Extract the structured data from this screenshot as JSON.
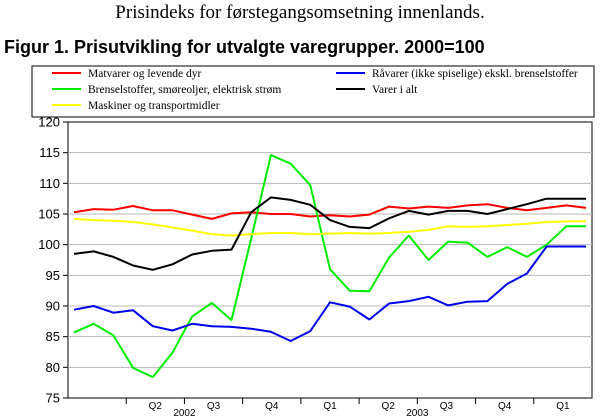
{
  "header": {
    "supertitle": "Prisindeks for førstegangsomsetning innenlands.",
    "figure_title": "Figur 1. Prisutvikling for utvalgte varegrupper. 2000=100"
  },
  "chart_data": {
    "type": "line",
    "title": "Figur 1. Prisutvikling for utvalgte varegrupper. 2000=100",
    "xlabel": "",
    "ylabel": "",
    "ylim": [
      75,
      120
    ],
    "yticks": [
      75,
      80,
      85,
      90,
      95,
      100,
      105,
      110,
      115,
      120
    ],
    "grid": true,
    "legend_position": "top",
    "x": [
      "2002-01",
      "2002-02",
      "2002-03",
      "2002-04",
      "2002-05",
      "2002-06",
      "2002-07",
      "2002-08",
      "2002-09",
      "2002-10",
      "2002-11",
      "2002-12",
      "2003-01",
      "2003-02",
      "2003-03",
      "2003-04",
      "2003-05",
      "2003-06",
      "2003-07",
      "2003-08",
      "2003-09",
      "2003-10",
      "2003-11",
      "2003-12",
      "2004-01",
      "2004-02",
      "2004-03"
    ],
    "quarter_labels": [
      "Q2",
      "Q3",
      "Q4",
      "Q1",
      "Q2",
      "Q3",
      "Q4",
      "Q1"
    ],
    "year_labels": [
      "2002",
      "2003"
    ],
    "series": [
      {
        "name": "Matvarer og levende dyr",
        "color": "#ff0000",
        "values": [
          105.3,
          105.8,
          105.7,
          106.3,
          105.6,
          105.6,
          104.9,
          104.2,
          105.1,
          105.3,
          105.0,
          105.0,
          104.6,
          104.8,
          104.6,
          104.9,
          106.2,
          105.9,
          106.2,
          106.0,
          106.4,
          106.6,
          106.0,
          105.6,
          106.0,
          106.4,
          106.0
        ]
      },
      {
        "name": "Brenselstoffer, smøreoljer, elektrisk strøm",
        "color": "#00ee00",
        "values": [
          85.7,
          87.1,
          85.2,
          79.9,
          78.4,
          82.4,
          88.3,
          90.5,
          87.7,
          101.0,
          114.6,
          113.2,
          109.7,
          96.0,
          92.5,
          92.4,
          97.9,
          101.5,
          97.5,
          100.5,
          100.3,
          98.0,
          99.6,
          98.0,
          100.0,
          103.0,
          103.0
        ]
      },
      {
        "name": "Maskiner og transportmidler",
        "color": "#ffff00",
        "values": [
          104.2,
          104.0,
          103.9,
          103.7,
          103.3,
          102.8,
          102.3,
          101.7,
          101.5,
          101.7,
          101.9,
          101.9,
          101.7,
          101.8,
          101.9,
          101.8,
          101.9,
          102.1,
          102.4,
          103.0,
          102.9,
          103.0,
          103.2,
          103.4,
          103.7,
          103.8,
          103.8
        ]
      },
      {
        "name": "Råvarer (ikke spiselige) ekskl. brenselstoffer",
        "color": "#0000ee",
        "values": [
          89.4,
          90.0,
          88.9,
          89.3,
          86.7,
          86.0,
          87.1,
          86.7,
          86.6,
          86.3,
          85.8,
          84.3,
          85.9,
          90.6,
          89.9,
          87.8,
          90.4,
          90.8,
          91.5,
          90.1,
          90.7,
          90.8,
          93.6,
          95.3,
          99.7,
          99.7,
          99.7
        ]
      },
      {
        "name": "Varer i alt",
        "color": "#000000",
        "values": [
          98.5,
          98.9,
          98.0,
          96.6,
          95.9,
          96.8,
          98.4,
          99.0,
          99.2,
          105.3,
          107.7,
          107.3,
          106.5,
          104.0,
          102.9,
          102.7,
          104.3,
          105.5,
          104.9,
          105.5,
          105.5,
          105.0,
          105.8,
          106.6,
          107.5,
          107.5,
          107.5
        ]
      }
    ]
  }
}
